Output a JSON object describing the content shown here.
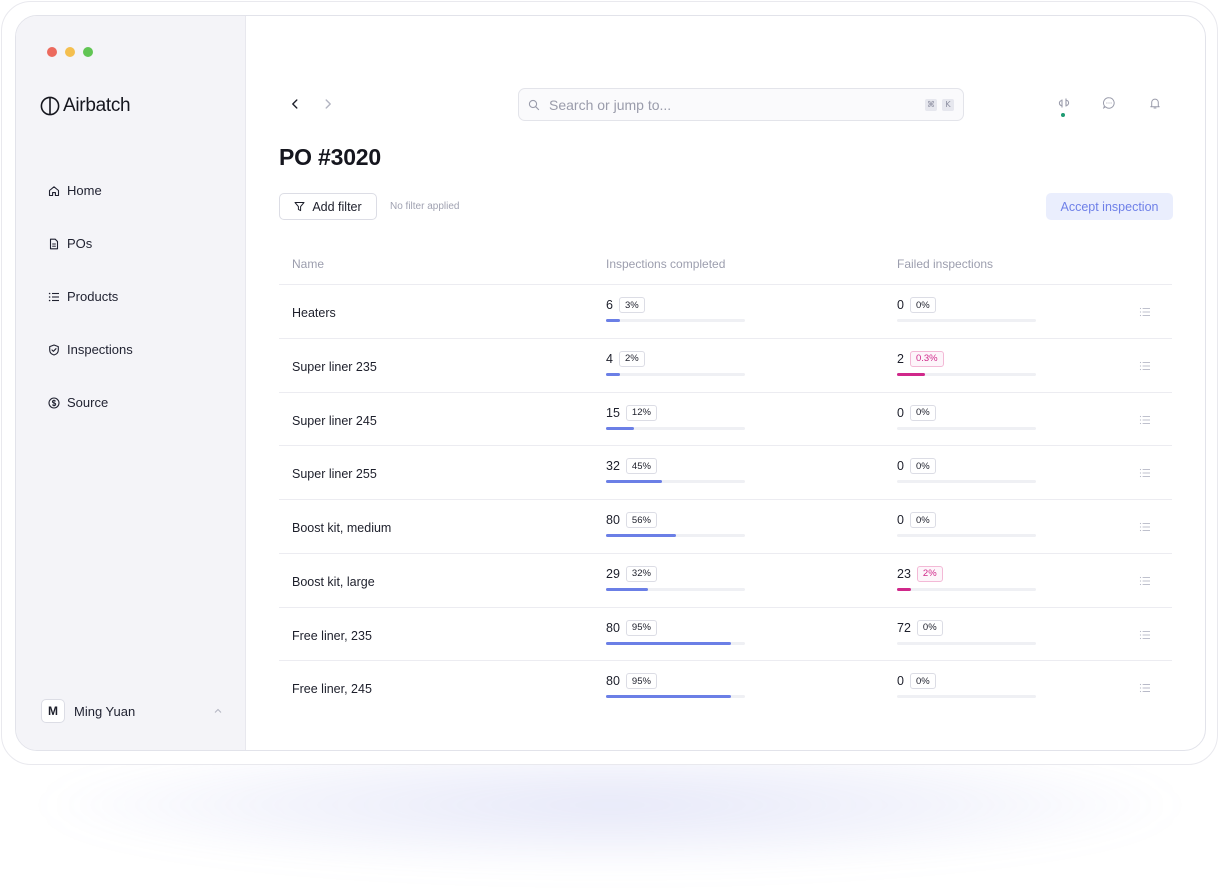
{
  "app": {
    "name": "Airbatch"
  },
  "sidebar": {
    "items": [
      {
        "label": "Home",
        "icon": "home-icon"
      },
      {
        "label": "POs",
        "icon": "document-icon"
      },
      {
        "label": "Products",
        "icon": "list-icon"
      },
      {
        "label": "Inspections",
        "icon": "shield-check-icon"
      },
      {
        "label": "Source",
        "icon": "dollar-circle-icon"
      }
    ],
    "user": {
      "initial": "M",
      "name": "Ming Yuan"
    }
  },
  "header": {
    "search_placeholder": "Search or jump to...",
    "shortcut_keys": [
      "⌘",
      "K"
    ]
  },
  "page": {
    "title": "PO #3020",
    "add_filter_label": "Add filter",
    "filter_status": "No filter applied",
    "accept_label": "Accept inspection"
  },
  "table": {
    "columns": [
      "Name",
      "Inspections completed",
      "Failed inspections"
    ],
    "rows": [
      {
        "name": "Heaters",
        "completed": "6",
        "completed_pct": "3%",
        "completed_frac": 0.1,
        "failed": "0",
        "failed_pct": "0%",
        "failed_frac": 0,
        "failed_warn": false
      },
      {
        "name": "Super liner 235",
        "completed": "4",
        "completed_pct": "2%",
        "completed_frac": 0.1,
        "failed": "2",
        "failed_pct": "0.3%",
        "failed_frac": 0.2,
        "failed_warn": true
      },
      {
        "name": "Super liner 245",
        "completed": "15",
        "completed_pct": "12%",
        "completed_frac": 0.2,
        "failed": "0",
        "failed_pct": "0%",
        "failed_frac": 0,
        "failed_warn": false
      },
      {
        "name": "Super liner 255",
        "completed": "32",
        "completed_pct": "45%",
        "completed_frac": 0.4,
        "failed": "0",
        "failed_pct": "0%",
        "failed_frac": 0,
        "failed_warn": false
      },
      {
        "name": "Boost kit, medium",
        "completed": "80",
        "completed_pct": "56%",
        "completed_frac": 0.5,
        "failed": "0",
        "failed_pct": "0%",
        "failed_frac": 0,
        "failed_warn": false
      },
      {
        "name": "Boost kit, large",
        "completed": "29",
        "completed_pct": "32%",
        "completed_frac": 0.3,
        "failed": "23",
        "failed_pct": "2%",
        "failed_frac": 0.1,
        "failed_warn": true
      },
      {
        "name": "Free liner, 235",
        "completed": "80",
        "completed_pct": "95%",
        "completed_frac": 0.9,
        "failed": "72",
        "failed_pct": "0%",
        "failed_frac": 0,
        "failed_warn": false
      },
      {
        "name": "Free liner, 245",
        "completed": "80",
        "completed_pct": "95%",
        "completed_frac": 0.9,
        "failed": "0",
        "failed_pct": "0%",
        "failed_frac": 0,
        "failed_warn": false
      }
    ]
  },
  "colors": {
    "accent": "#6b7fe6",
    "danger": "#d0288a",
    "sidebar_bg": "#f4f4f8",
    "traffic_red": "#ec6a5e",
    "traffic_yellow": "#f4bf4f",
    "traffic_green": "#61c554"
  }
}
